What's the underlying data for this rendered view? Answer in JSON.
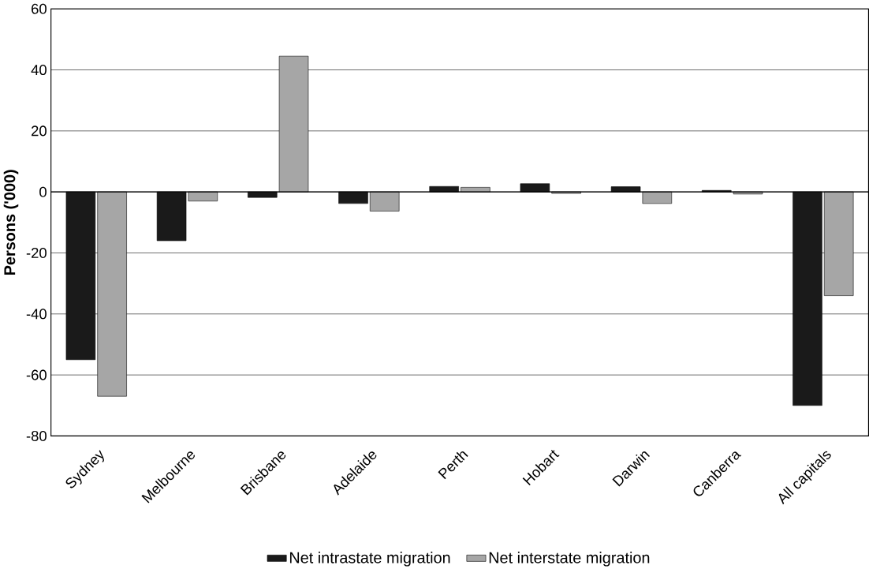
{
  "chart_data": {
    "type": "bar",
    "ylabel": "Persons ('000)",
    "categories": [
      "Sydney",
      "Melbourne",
      "Brisbane",
      "Adelaide",
      "Perth",
      "Hobart",
      "Darwin",
      "Canberra",
      "All capitals"
    ],
    "series": [
      {
        "name": "Net intrastate migration",
        "color": "#1a1a1a",
        "values": [
          -55,
          -16,
          -1.8,
          -3.8,
          1.8,
          2.7,
          1.7,
          0.5,
          -70
        ]
      },
      {
        "name": "Net interstate migration",
        "color": "#a6a6a6",
        "values": [
          -67,
          -3,
          44.5,
          -6.3,
          1.5,
          -0.5,
          -3.8,
          -0.7,
          -34
        ]
      }
    ],
    "ylim": [
      -80,
      60
    ],
    "yticks": [
      -80,
      -60,
      -40,
      -20,
      0,
      20,
      40,
      60
    ],
    "grid": "y",
    "legend": "bottom"
  }
}
